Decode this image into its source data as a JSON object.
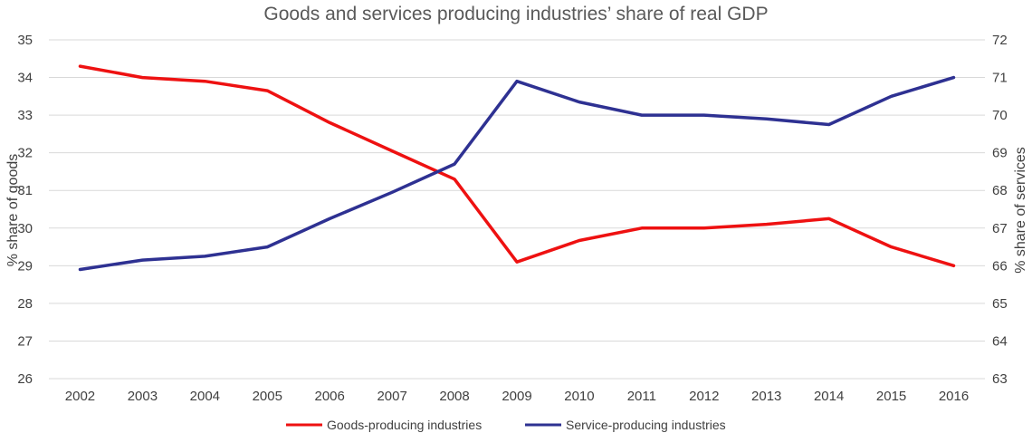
{
  "chart_data": {
    "type": "line",
    "title": "Goods and services producing industries’ share of real GDP",
    "x": [
      "2002",
      "2003",
      "2004",
      "2005",
      "2006",
      "2007",
      "2008",
      "2009",
      "2010",
      "2011",
      "2012",
      "2013",
      "2014",
      "2015",
      "2016"
    ],
    "y_left_label": "% share of goods",
    "y_right_label": "% share of services",
    "y_left_lim": [
      26,
      35
    ],
    "y_right_lim": [
      63,
      72
    ],
    "y_left_ticks": [
      "35",
      "34",
      "33",
      "32",
      "31",
      "30",
      "29",
      "28",
      "27",
      "26"
    ],
    "y_right_ticks": [
      "72",
      "71",
      "70",
      "69",
      "68",
      "67",
      "66",
      "65",
      "64",
      "63"
    ],
    "grid": true,
    "legend_position": "bottom",
    "series": [
      {
        "name": "Goods-producing industries",
        "axis": "left",
        "color": "#ee1111",
        "values": [
          34.3,
          34.0,
          33.9,
          33.65,
          32.8,
          32.05,
          31.3,
          29.1,
          29.67,
          30.0,
          30.0,
          30.1,
          30.25,
          29.5,
          29.0
        ]
      },
      {
        "name": "Service-producing industries",
        "axis": "right",
        "color": "#2e3192",
        "values": [
          65.9,
          66.15,
          66.25,
          66.5,
          67.25,
          67.95,
          68.7,
          70.9,
          70.35,
          70.0,
          70.0,
          69.9,
          69.75,
          70.5,
          71.0
        ]
      }
    ]
  }
}
